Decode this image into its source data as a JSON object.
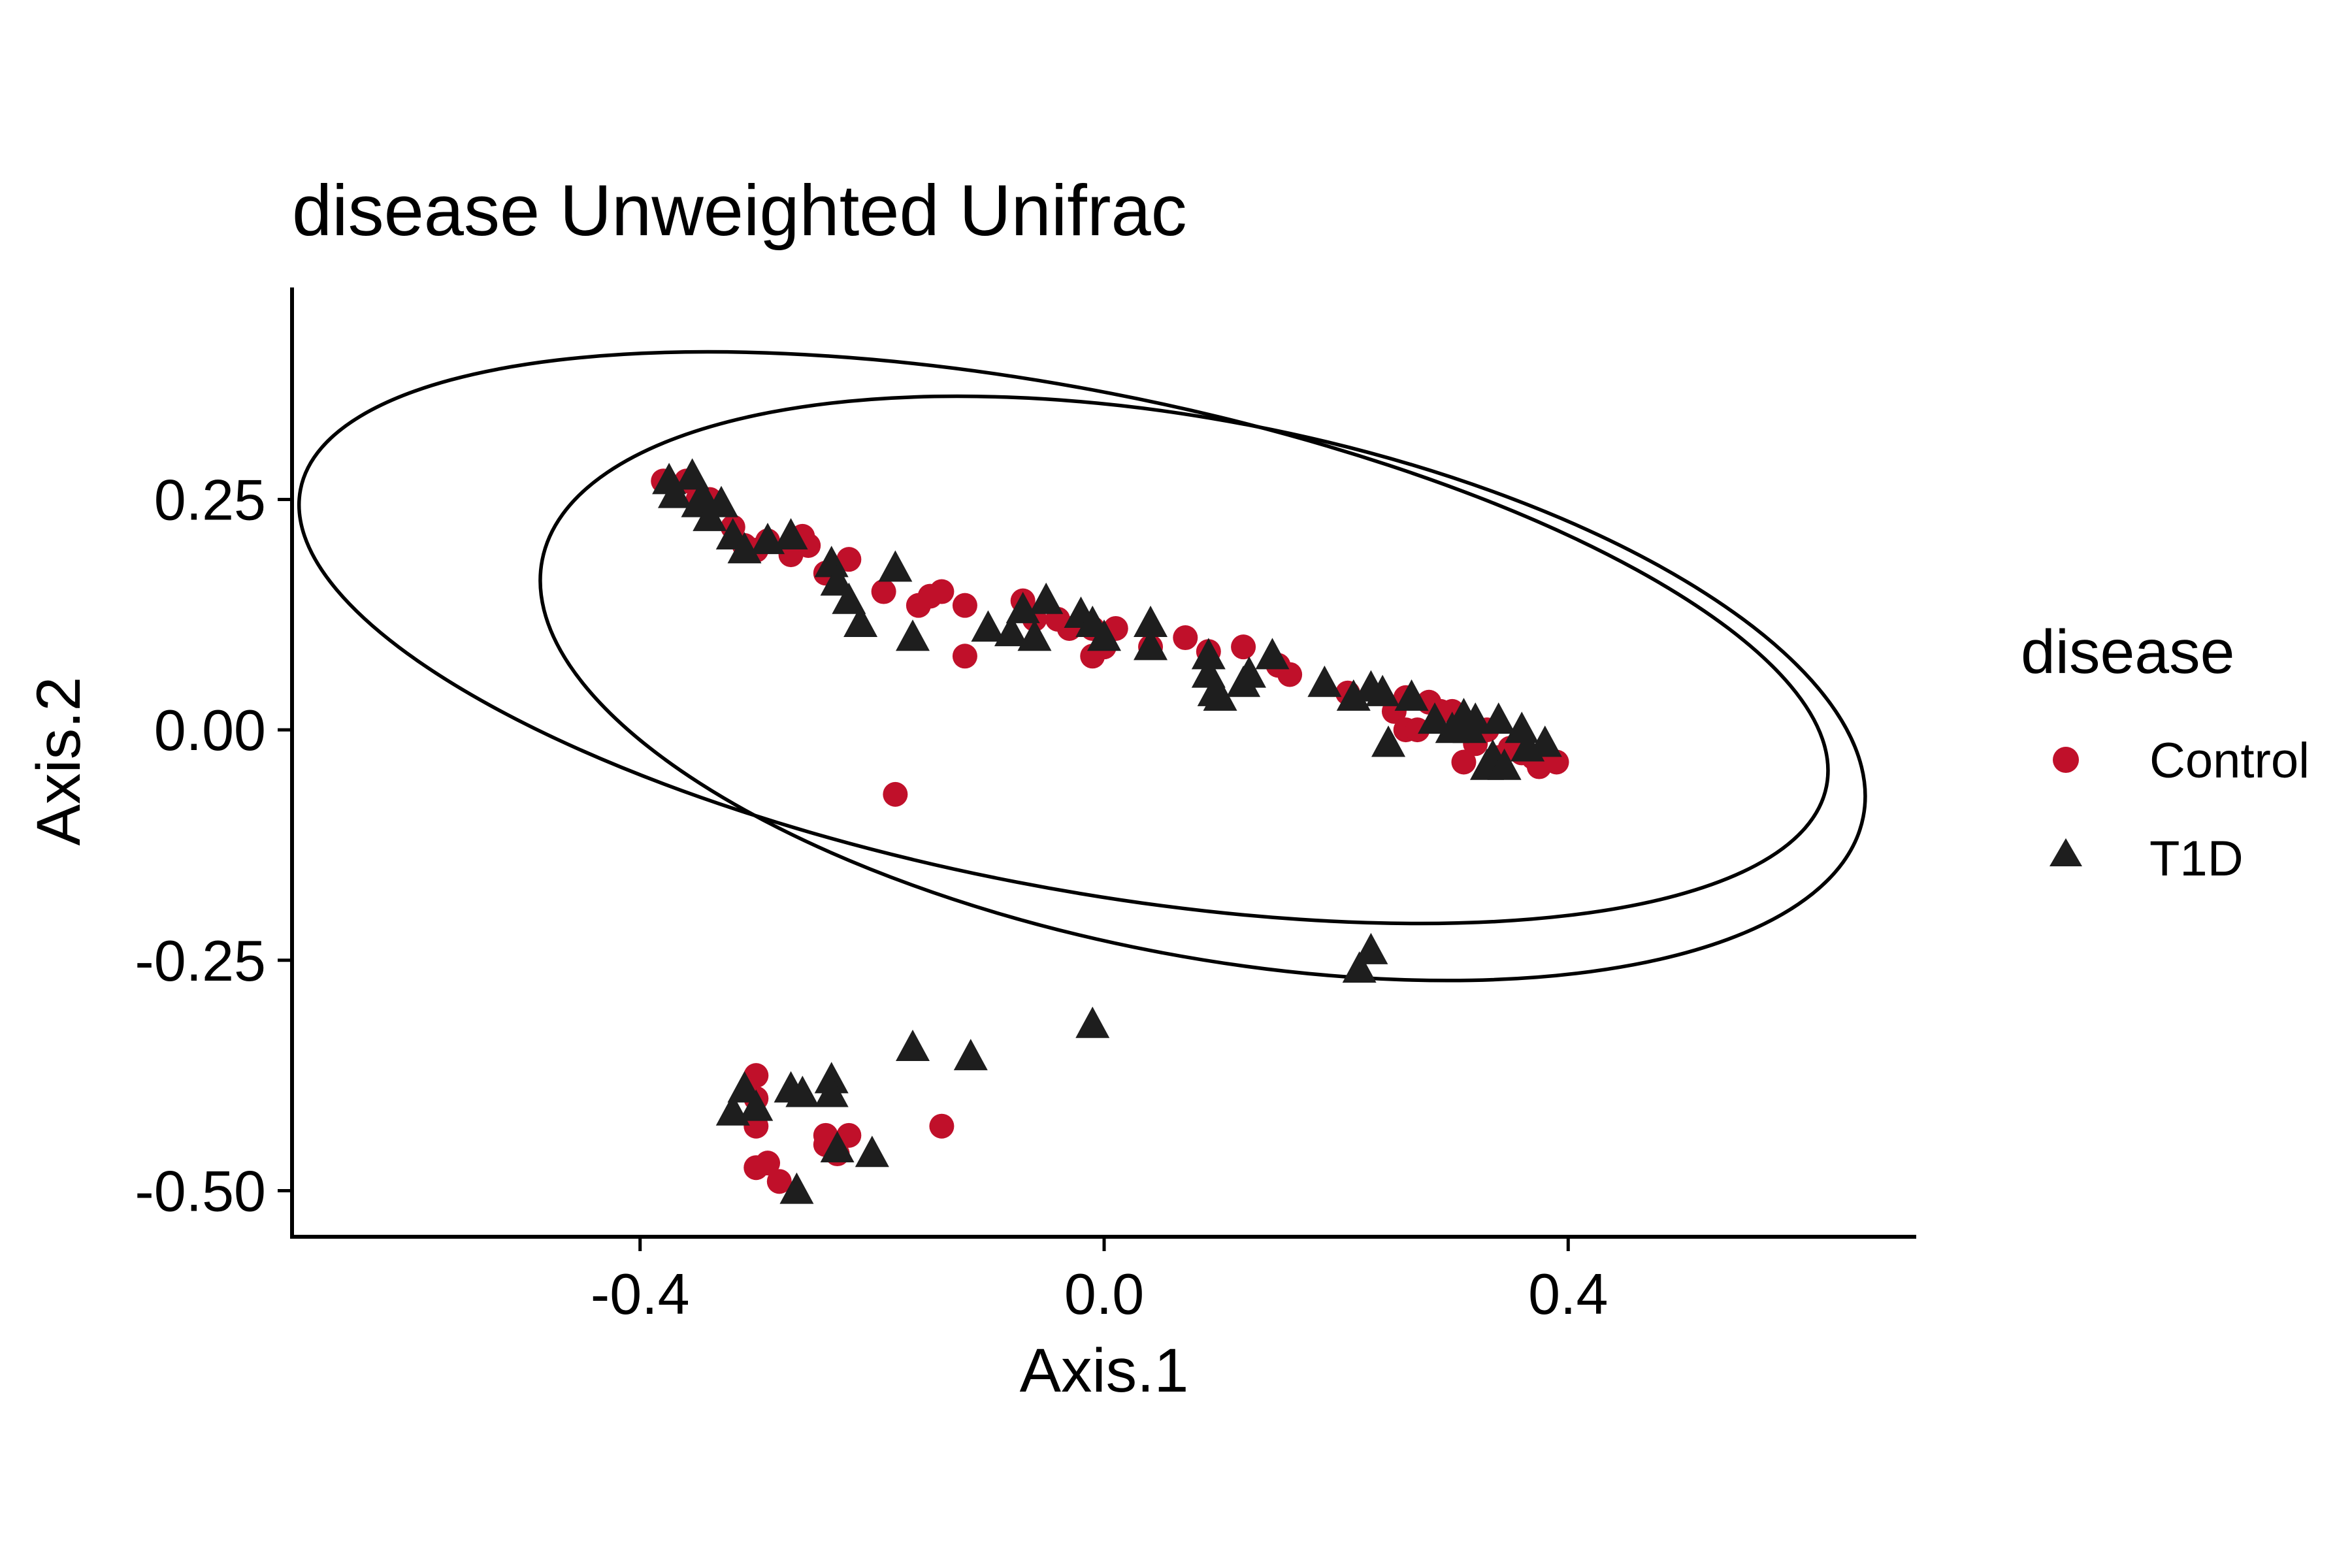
{
  "chart_data": {
    "type": "scatter",
    "title": "disease Unweighted Unifrac",
    "xlabel": "Axis.1",
    "ylabel": "Axis.2",
    "xlim": [
      -0.7,
      0.7
    ],
    "ylim": [
      -0.55,
      0.48
    ],
    "x_ticks": [
      -0.4,
      0.0,
      0.4
    ],
    "x_tick_labels": [
      "-0.4",
      "0.0",
      "0.4"
    ],
    "y_ticks": [
      -0.5,
      -0.25,
      0.0,
      0.25
    ],
    "y_tick_labels": [
      "-0.50",
      "-0.25",
      "0.00",
      "0.25"
    ],
    "grid": false,
    "legend": {
      "title": "disease",
      "position": "right",
      "entries": [
        {
          "label": "Control",
          "shape": "circle",
          "color": "#C0102A"
        },
        {
          "label": "T1D",
          "shape": "triangle",
          "color": "#1E1E1E"
        }
      ]
    },
    "ellipses": [
      {
        "group": "Control",
        "center": [
          -0.035,
          0.1
        ],
        "semi_axes": [
          0.67,
          0.27
        ],
        "angle_deg": -11
      },
      {
        "group": "T1D",
        "center": [
          0.085,
          0.045
        ],
        "semi_axes": [
          0.58,
          0.29
        ],
        "angle_deg": -11
      }
    ],
    "series": [
      {
        "name": "Control",
        "points": [
          [
            -0.38,
            0.27
          ],
          [
            -0.36,
            0.27
          ],
          [
            -0.35,
            0.25
          ],
          [
            -0.34,
            0.25
          ],
          [
            -0.32,
            0.22
          ],
          [
            -0.31,
            0.2
          ],
          [
            -0.3,
            0.195
          ],
          [
            -0.29,
            0.205
          ],
          [
            -0.27,
            0.19
          ],
          [
            -0.26,
            0.21
          ],
          [
            -0.255,
            0.2
          ],
          [
            -0.22,
            0.185
          ],
          [
            -0.24,
            0.17
          ],
          [
            -0.19,
            0.15
          ],
          [
            -0.16,
            0.135
          ],
          [
            -0.15,
            0.145
          ],
          [
            -0.14,
            0.15
          ],
          [
            -0.12,
            0.135
          ],
          [
            -0.12,
            0.08
          ],
          [
            -0.07,
            0.14
          ],
          [
            -0.06,
            0.12
          ],
          [
            -0.04,
            0.12
          ],
          [
            -0.03,
            0.11
          ],
          [
            -0.01,
            0.11
          ],
          [
            -0.01,
            0.08
          ],
          [
            0.0,
            0.09
          ],
          [
            0.01,
            0.11
          ],
          [
            0.04,
            0.09
          ],
          [
            0.07,
            0.1
          ],
          [
            0.09,
            0.085
          ],
          [
            0.12,
            0.09
          ],
          [
            0.15,
            0.07
          ],
          [
            0.16,
            0.06
          ],
          [
            0.21,
            0.04
          ],
          [
            0.25,
            0.02
          ],
          [
            0.26,
            0.035
          ],
          [
            0.26,
            0.0
          ],
          [
            0.27,
            0.0
          ],
          [
            0.28,
            0.03
          ],
          [
            0.29,
            0.02
          ],
          [
            0.3,
            0.02
          ],
          [
            0.31,
            -0.035
          ],
          [
            0.32,
            -0.015
          ],
          [
            0.33,
            0.0
          ],
          [
            0.34,
            -0.03
          ],
          [
            0.35,
            -0.02
          ],
          [
            0.36,
            -0.025
          ],
          [
            0.37,
            -0.03
          ],
          [
            0.375,
            -0.04
          ],
          [
            0.39,
            -0.035
          ],
          [
            -0.18,
            -0.07
          ],
          [
            -0.3,
            -0.375
          ],
          [
            -0.3,
            -0.43
          ],
          [
            -0.29,
            -0.47
          ],
          [
            -0.3,
            -0.475
          ],
          [
            -0.28,
            -0.49
          ],
          [
            -0.24,
            -0.45
          ],
          [
            -0.23,
            -0.46
          ],
          [
            -0.22,
            -0.44
          ],
          [
            -0.14,
            -0.43
          ],
          [
            -0.24,
            -0.44
          ],
          [
            -0.3,
            -0.4
          ]
        ]
      },
      {
        "name": "T1D",
        "points": [
          [
            -0.375,
            0.27
          ],
          [
            -0.37,
            0.255
          ],
          [
            -0.355,
            0.275
          ],
          [
            -0.35,
            0.245
          ],
          [
            -0.345,
            0.25
          ],
          [
            -0.34,
            0.23
          ],
          [
            -0.33,
            0.245
          ],
          [
            -0.32,
            0.21
          ],
          [
            -0.31,
            0.195
          ],
          [
            -0.29,
            0.205
          ],
          [
            -0.27,
            0.21
          ],
          [
            -0.235,
            0.18
          ],
          [
            -0.23,
            0.16
          ],
          [
            -0.22,
            0.14
          ],
          [
            -0.21,
            0.115
          ],
          [
            -0.18,
            0.175
          ],
          [
            -0.165,
            0.1
          ],
          [
            -0.1,
            0.11
          ],
          [
            -0.08,
            0.105
          ],
          [
            -0.07,
            0.13
          ],
          [
            -0.06,
            0.1
          ],
          [
            -0.05,
            0.14
          ],
          [
            -0.02,
            0.125
          ],
          [
            -0.01,
            0.115
          ],
          [
            0.0,
            0.1
          ],
          [
            0.04,
            0.115
          ],
          [
            0.04,
            0.09
          ],
          [
            0.09,
            0.08
          ],
          [
            0.09,
            0.06
          ],
          [
            0.095,
            0.04
          ],
          [
            0.1,
            0.035
          ],
          [
            0.12,
            0.05
          ],
          [
            0.125,
            0.06
          ],
          [
            0.145,
            0.08
          ],
          [
            0.19,
            0.05
          ],
          [
            0.215,
            0.035
          ],
          [
            0.23,
            0.045
          ],
          [
            0.24,
            0.04
          ],
          [
            0.245,
            -0.015
          ],
          [
            0.265,
            0.035
          ],
          [
            0.285,
            0.01
          ],
          [
            0.3,
            0.0
          ],
          [
            0.31,
            0.015
          ],
          [
            0.315,
            0.0
          ],
          [
            0.32,
            0.01
          ],
          [
            0.33,
            -0.04
          ],
          [
            0.335,
            -0.03
          ],
          [
            0.34,
            0.01
          ],
          [
            0.345,
            -0.04
          ],
          [
            0.36,
            0.0
          ],
          [
            0.365,
            -0.02
          ],
          [
            0.38,
            -0.015
          ],
          [
            0.22,
            -0.26
          ],
          [
            0.23,
            -0.24
          ],
          [
            -0.01,
            -0.32
          ],
          [
            -0.165,
            -0.345
          ],
          [
            -0.115,
            -0.355
          ],
          [
            -0.32,
            -0.415
          ],
          [
            -0.31,
            -0.39
          ],
          [
            -0.3,
            -0.41
          ],
          [
            -0.27,
            -0.39
          ],
          [
            -0.26,
            -0.395
          ],
          [
            -0.235,
            -0.38
          ],
          [
            -0.235,
            -0.395
          ],
          [
            -0.23,
            -0.455
          ],
          [
            -0.2,
            -0.46
          ],
          [
            -0.265,
            -0.5
          ]
        ]
      }
    ]
  }
}
